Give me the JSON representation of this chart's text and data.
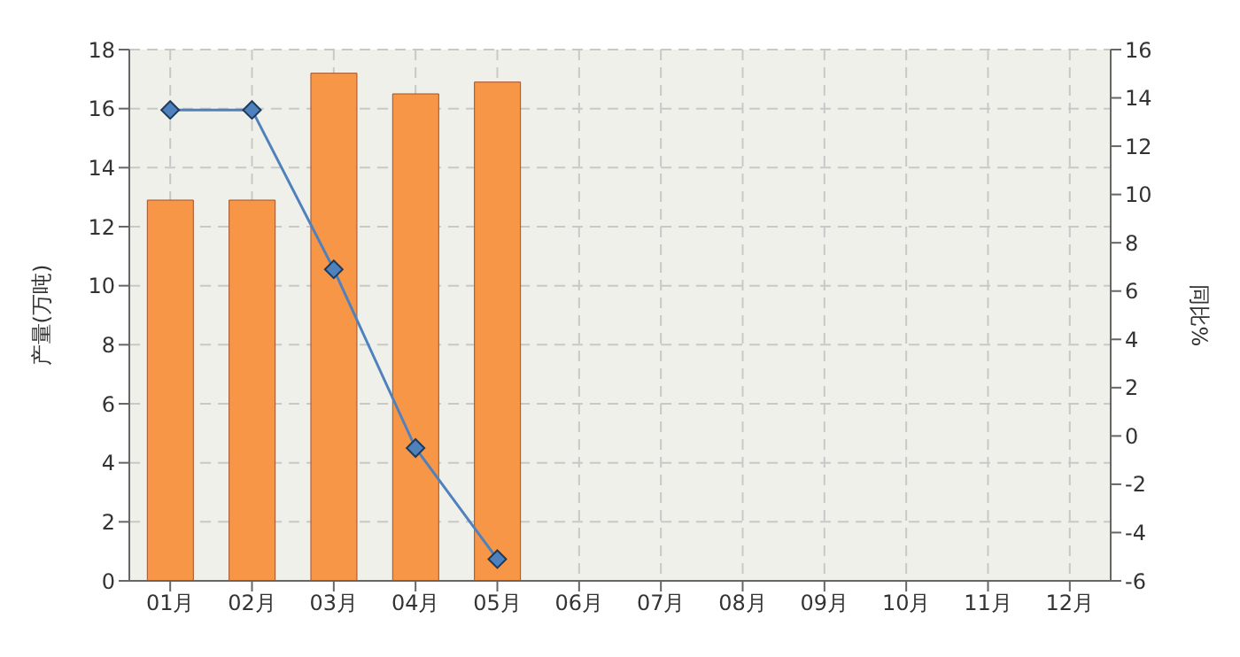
{
  "chart_data": {
    "type": "bar",
    "ylabel": "产量(万吨)",
    "y2label": "同比%",
    "categories": [
      "01月",
      "02月",
      "03月",
      "04月",
      "05月",
      "06月",
      "07月",
      "08月",
      "09月",
      "10月",
      "11月",
      "12月"
    ],
    "series": [
      {
        "color": "#f79646",
        "values": [
          12.9,
          12.9,
          17.2,
          16.5,
          16.9,
          null,
          null,
          null,
          null,
          null,
          null,
          null
        ]
      },
      {
        "type": "line",
        "axis": "y2",
        "color": "#4f81bd",
        "marker": "diamond",
        "values": [
          13.5,
          13.5,
          6.9,
          -0.5,
          -5.1,
          null,
          null,
          null,
          null,
          null,
          null,
          null
        ]
      }
    ],
    "ylim": [
      0,
      18
    ],
    "yticks": [
      0,
      2,
      4,
      6,
      8,
      10,
      12,
      14,
      16,
      18
    ],
    "y2lim": [
      -6,
      16
    ],
    "y2ticks": [
      -6,
      -4,
      -2,
      0,
      2,
      4,
      6,
      8,
      10,
      12,
      14,
      16
    ],
    "grid": true
  }
}
